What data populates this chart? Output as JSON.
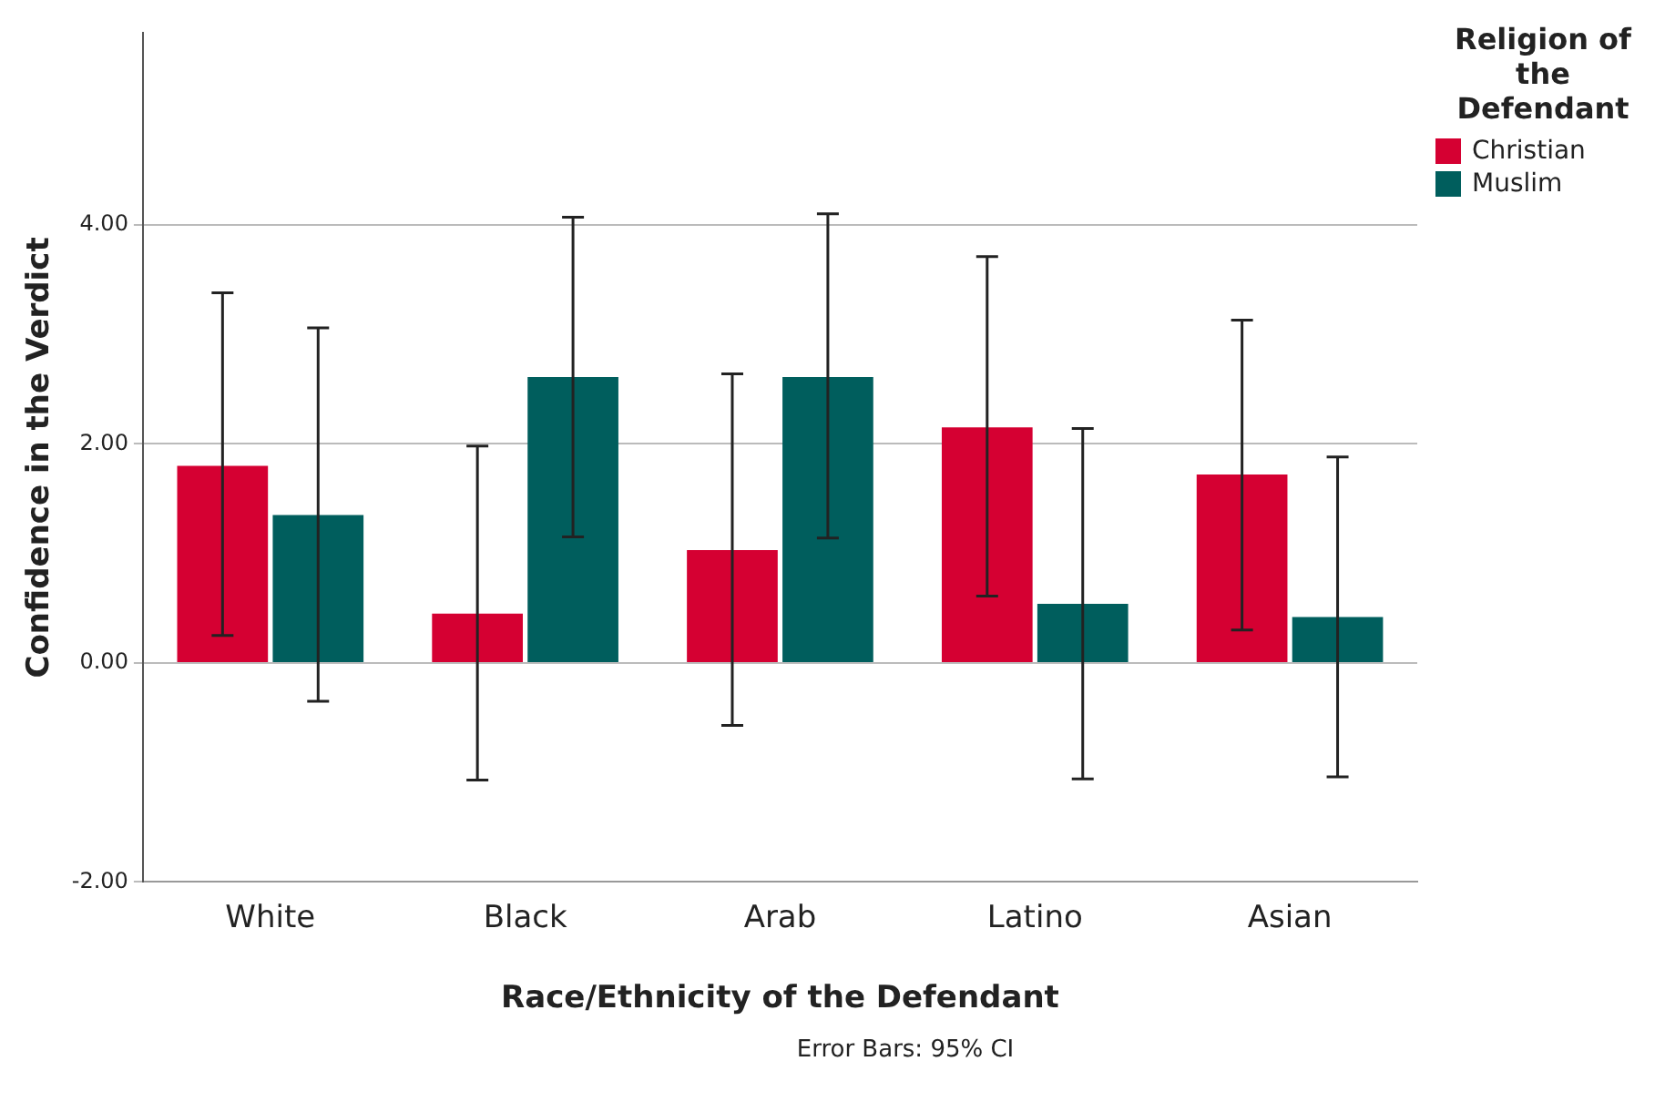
{
  "chart_data": {
    "type": "bar",
    "xlabel": "Race/Ethnicity of the Defendant",
    "ylabel": "Confidence in the Verdict",
    "legend_title": "Religion of the Defendant",
    "categories": [
      "White",
      "Black",
      "Arab",
      "Latino",
      "Asian"
    ],
    "series": [
      {
        "name": "Christian",
        "color": "#d50032",
        "values": [
          1.8,
          0.45,
          1.03,
          2.15,
          1.72
        ],
        "errors": [
          [
            0.25,
            3.38
          ],
          [
            -1.07,
            1.98
          ],
          [
            -0.57,
            2.64
          ],
          [
            0.61,
            3.71
          ],
          [
            0.3,
            3.13
          ]
        ]
      },
      {
        "name": "Muslim",
        "color": "#005e5d",
        "values": [
          1.35,
          2.61,
          2.61,
          0.54,
          0.42
        ],
        "errors": [
          [
            -0.35,
            3.06
          ],
          [
            1.15,
            4.07
          ],
          [
            1.14,
            4.1
          ],
          [
            -1.06,
            2.14
          ],
          [
            -1.04,
            1.88
          ]
        ]
      }
    ],
    "ylim": [
      -2,
      5.75
    ],
    "yticks": [
      {
        "value": -2,
        "label": "-2.00"
      },
      {
        "value": 0,
        "label": "0.00"
      },
      {
        "value": 2,
        "label": "2.00"
      },
      {
        "value": 4,
        "label": "4.00"
      }
    ],
    "grid": "y",
    "legend": "top right",
    "annotations": [
      "Error Bars: 95% CI"
    ]
  }
}
